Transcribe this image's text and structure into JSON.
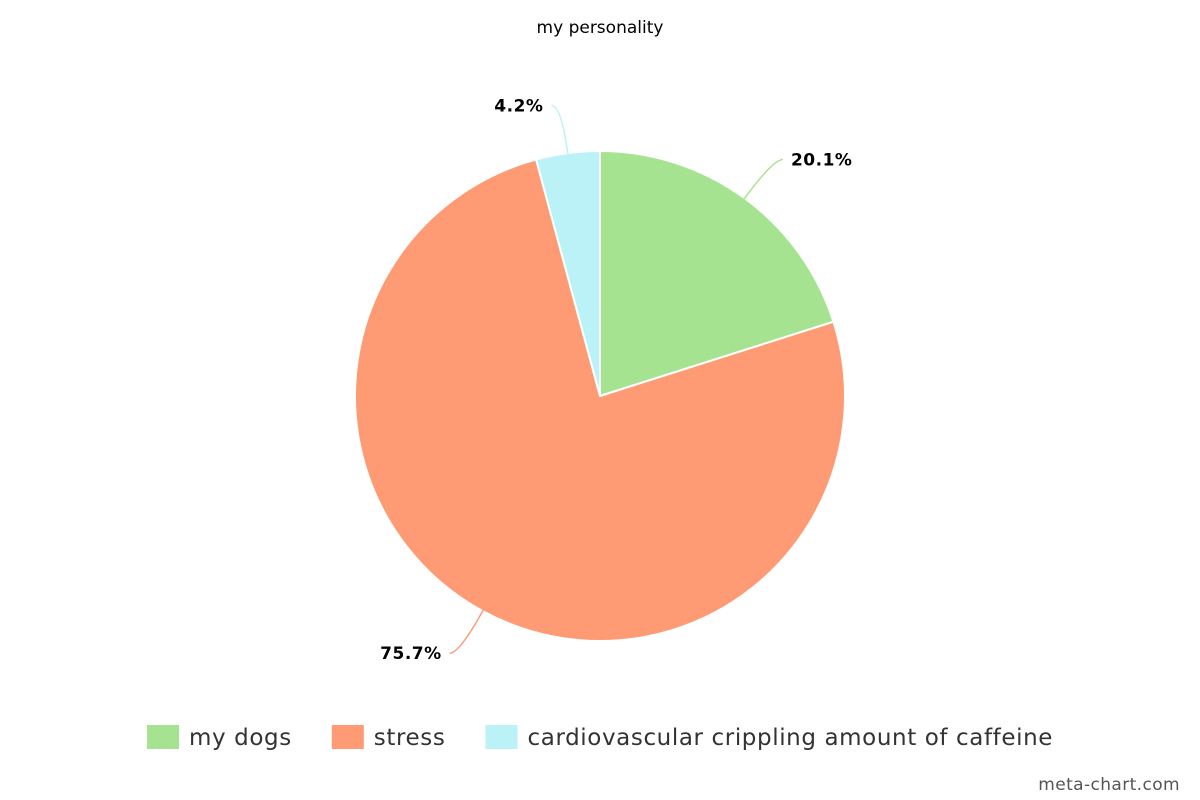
{
  "chart_data": {
    "type": "pie",
    "title": "my personality",
    "slices": [
      {
        "name": "my dogs",
        "value": 20.1,
        "label": "20.1%",
        "color": "#a6e391"
      },
      {
        "name": "stress",
        "value": 75.7,
        "label": "75.7%",
        "color": "#fe9b75"
      },
      {
        "name": "cardiovascular crippling amount of caffeine",
        "value": 4.2,
        "label": "4.2%",
        "color": "#baf2f7"
      }
    ],
    "start_angle_deg": 0,
    "direction": "clockwise",
    "legend_position": "bottom"
  },
  "watermark": "meta-chart.com"
}
